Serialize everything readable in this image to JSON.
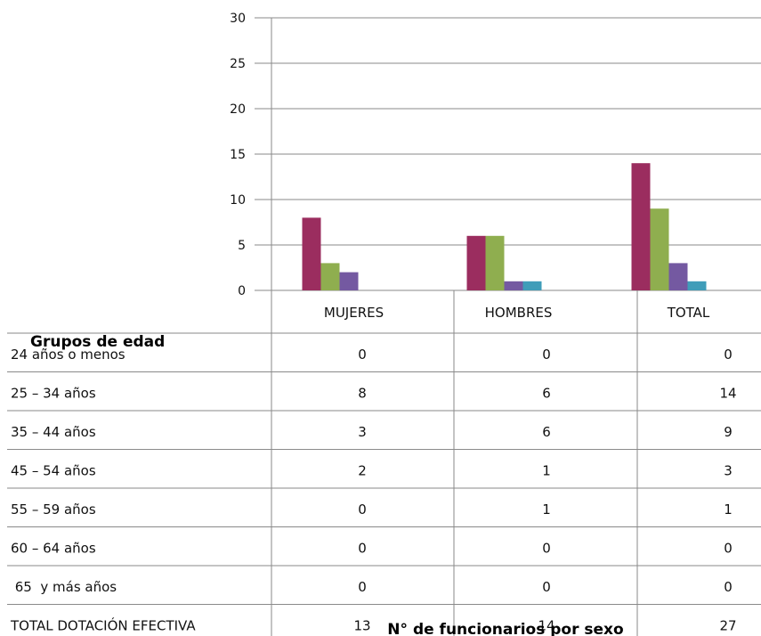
{
  "chart_data": {
    "type": "bar",
    "title": "",
    "xlabel": "N° de funcionarios por sexo",
    "ylabel": "",
    "table_header": "Grupos de edad",
    "ylim": [
      0,
      30
    ],
    "yticks": [
      0,
      5,
      10,
      15,
      20,
      25,
      30
    ],
    "grid": true,
    "categories": [
      "MUJERES",
      "HOMBRES",
      "TOTAL"
    ],
    "series": [
      {
        "name": "24 años o menos",
        "color": "#1f6f8f",
        "values": [
          0,
          0,
          0
        ]
      },
      {
        "name": "25 – 34 años",
        "color": "#9b2d5f",
        "values": [
          8,
          6,
          14
        ]
      },
      {
        "name": "35 – 44 años",
        "color": "#8fae4f",
        "values": [
          3,
          6,
          9
        ]
      },
      {
        "name": "45 – 54 años",
        "color": "#7459a1",
        "values": [
          2,
          1,
          3
        ]
      },
      {
        "name": "55 – 59 años",
        "color": "#3f9db9",
        "values": [
          0,
          1,
          1
        ]
      },
      {
        "name": "60 – 64 años",
        "color": "#e07b2a",
        "values": [
          0,
          0,
          0
        ]
      },
      {
        "name": " 65  y más años",
        "color": "#4f81bd",
        "values": [
          0,
          0,
          0
        ]
      }
    ],
    "totals": {
      "name": "TOTAL DOTACIÓN EFECTIVA",
      "values": [
        13,
        14,
        27
      ]
    }
  }
}
